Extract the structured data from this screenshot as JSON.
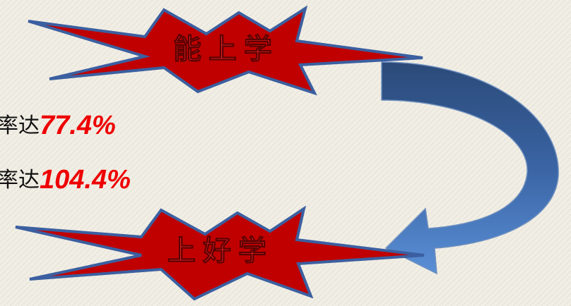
{
  "top_burst": {
    "label": "能上学"
  },
  "lines": [
    {
      "prefix": "率达",
      "value": "77.4%"
    },
    {
      "prefix": "率达",
      "value": "104.4%"
    }
  ],
  "bottom_burst": {
    "label": "上好学"
  }
}
